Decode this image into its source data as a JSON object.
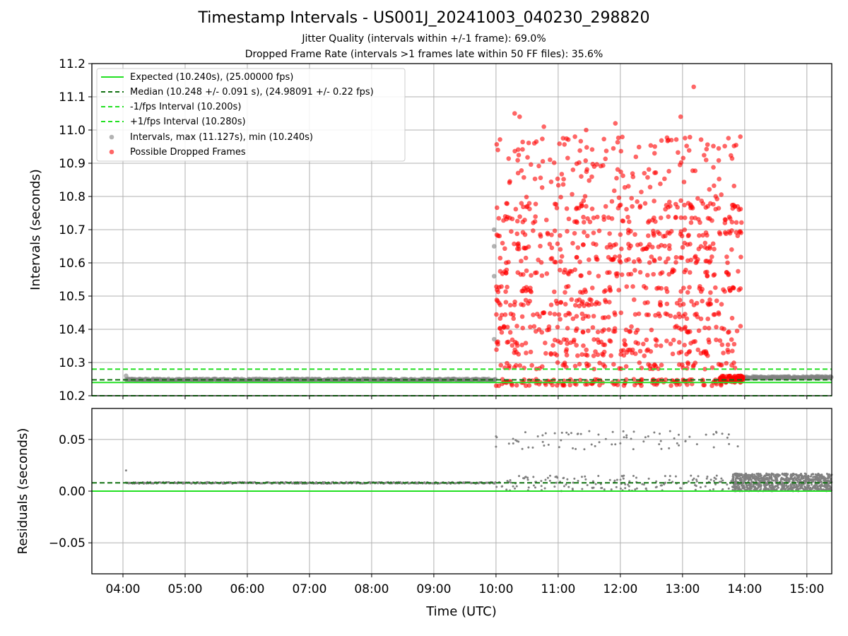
{
  "header": {
    "title": "Timestamp Intervals - US001J_20241003_040230_298820",
    "jitter_quality": "Jitter Quality (intervals within +/-1 frame): 69.0%",
    "dropped_rate": "Dropped Frame Rate (intervals >1 frames late within 50 FF files): 35.6%"
  },
  "colors": {
    "expected": "#22e022",
    "median": "#107010",
    "interval_points": "#808080",
    "dropped_points": "#ff0000"
  },
  "chart_data": [
    {
      "type": "scatter",
      "ylabel": "Intervals (seconds)",
      "xlabel": "",
      "ylim": [
        10.2,
        11.2
      ],
      "xlim_hours": [
        3.5,
        15.4
      ],
      "yticks": [
        "10.2",
        "10.3",
        "10.4",
        "10.5",
        "10.6",
        "10.7",
        "10.8",
        "10.9",
        "11.0",
        "11.1",
        "11.2"
      ],
      "grid": true,
      "legend_position": "top-left",
      "lines": [
        {
          "name": "Expected (10.240s), (25.00000 fps)",
          "y": 10.24,
          "style": "solid",
          "color": "#22e022"
        },
        {
          "name": "Median (10.248 +/- 0.091 s), (24.98091 +/- 0.22 fps)",
          "y": 10.248,
          "style": "dashed",
          "color": "#107010"
        },
        {
          "name": "-1/fps Interval (10.200s)",
          "y": 10.2,
          "style": "dashed",
          "color": "#22e022"
        },
        {
          "name": "+1/fps Interval (10.280s)",
          "y": 10.28,
          "style": "dashed",
          "color": "#22e022"
        }
      ],
      "series": [
        {
          "name": "Intervals, max (11.127s), min (10.240s)",
          "color": "#808080",
          "segments": [
            {
              "x_start": 4.05,
              "x_end": 10.0,
              "y": 10.248
            },
            {
              "x_start": 14.0,
              "x_end": 15.4,
              "y": 10.255
            }
          ],
          "points": [
            [
              4.05,
              10.26
            ],
            [
              9.97,
              10.37
            ],
            [
              9.97,
              10.56
            ],
            [
              9.97,
              10.65
            ],
            [
              9.97,
              10.7
            ]
          ]
        },
        {
          "name": "Possible Dropped Frames",
          "color": "#ff0000",
          "x_range": [
            10.0,
            13.95
          ],
          "y_bands": [
            10.24,
            10.29,
            10.33,
            10.36,
            10.4,
            10.44,
            10.48,
            10.52,
            10.57,
            10.61,
            10.65,
            10.69,
            10.73,
            10.77
          ],
          "outliers": [
            [
              10.3,
              11.05
            ],
            [
              10.38,
              11.04
            ],
            [
              10.77,
              11.01
            ],
            [
              11.27,
              10.98
            ],
            [
              11.45,
              11.0
            ],
            [
              11.92,
              11.02
            ],
            [
              12.97,
              11.04
            ],
            [
              13.18,
              11.13
            ],
            [
              13.93,
              10.98
            ],
            [
              10.03,
              10.94
            ],
            [
              11.58,
              10.89
            ],
            [
              12.55,
              10.93
            ]
          ]
        }
      ]
    },
    {
      "type": "scatter",
      "ylabel": "Residuals (seconds)",
      "xlabel": "Time (UTC)",
      "ylim": [
        -0.08,
        0.08
      ],
      "yticks": [
        "0.00",
        "0.05",
        "−0.05"
      ],
      "xticks": [
        "04:00",
        "05:00",
        "06:00",
        "07:00",
        "08:00",
        "09:00",
        "10:00",
        "11:00",
        "12:00",
        "13:00",
        "14:00",
        "15:00"
      ],
      "grid": true,
      "lines": [
        {
          "name": "Expected",
          "y": 0.0,
          "style": "solid",
          "color": "#22e022"
        },
        {
          "name": "Median",
          "y": 0.008,
          "style": "dashed",
          "color": "#107010"
        }
      ],
      "series": [
        {
          "name": "Residuals",
          "color": "#808080",
          "segments": [
            {
              "x_start": 4.05,
              "x_end": 10.0,
              "y": 0.008
            }
          ],
          "points": [
            [
              4.05,
              0.02
            ],
            [
              10.0,
              0.053
            ],
            [
              10.0,
              0.043
            ],
            [
              10.8,
              0.056
            ],
            [
              11.5,
              0.058
            ],
            [
              12.1,
              0.054
            ],
            [
              12.8,
              0.058
            ],
            [
              13.5,
              0.055
            ]
          ],
          "band_14_15": {
            "x_range": [
              13.8,
              15.4
            ],
            "y_range": [
              0.0,
              0.017
            ]
          }
        }
      ]
    }
  ]
}
